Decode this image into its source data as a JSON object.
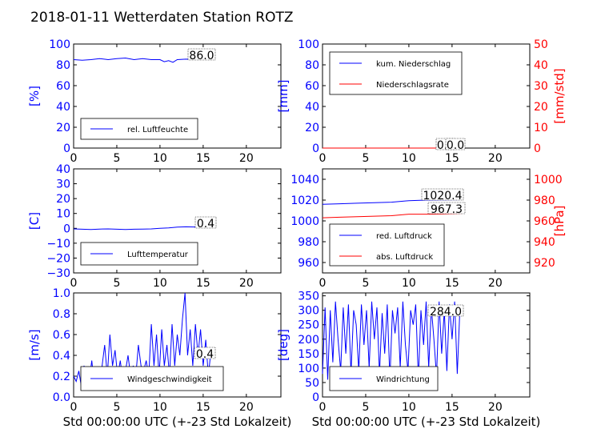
{
  "title": "2018-01-11 Wetterdaten Station ROTZ",
  "colors": {
    "blue": "#0000ff",
    "red": "#ff0000",
    "black": "#000000"
  },
  "chart_data": [
    {
      "id": "humidity",
      "type": "line",
      "xlim": [
        0,
        24
      ],
      "xticks": [
        0,
        5,
        10,
        15,
        20
      ],
      "ylim": [
        0,
        100
      ],
      "yticks": [
        0,
        20,
        40,
        60,
        80,
        100
      ],
      "ylabel": "[%]",
      "ylabel_color": "#0000ff",
      "annotations": [
        "86.0"
      ],
      "legend": [
        "rel. Luftfeuchte"
      ],
      "series": [
        {
          "name": "rel. Luftfeuchte",
          "color": "#0000ff",
          "x": [
            0,
            1,
            2,
            3,
            4,
            5,
            6,
            7,
            8,
            9,
            10,
            10.5,
            11,
            11.5,
            12,
            13,
            14,
            15,
            16.3
          ],
          "y": [
            85,
            84.5,
            85,
            86,
            85,
            86,
            86.5,
            85,
            86,
            85,
            85,
            83,
            84,
            82.5,
            85,
            85.5,
            85,
            86,
            86
          ]
        }
      ]
    },
    {
      "id": "precipitation",
      "type": "line",
      "xlim": [
        0,
        24
      ],
      "xticks": [
        0,
        5,
        10,
        15,
        20
      ],
      "ylim": [
        0,
        100
      ],
      "yticks": [
        0,
        20,
        40,
        60,
        80,
        100
      ],
      "ylabel": "[mm]",
      "ylabel_color": "#0000ff",
      "y2lim": [
        0,
        50
      ],
      "y2ticks": [
        0,
        10,
        20,
        30,
        40,
        50
      ],
      "y2label": "[mm/std]",
      "y2label_color": "#ff0000",
      "annotations": [
        "0.0",
        "0.0"
      ],
      "legend": [
        "kum. Niederschlag",
        "Niederschlagsrate"
      ],
      "series": [
        {
          "name": "kum. Niederschlag",
          "color": "#0000ff",
          "x": [
            0,
            16.3
          ],
          "y": [
            0,
            0
          ]
        },
        {
          "name": "Niederschlagsrate",
          "color": "#ff0000",
          "axis": "right",
          "x": [
            0,
            16.3
          ],
          "y": [
            0,
            0
          ]
        }
      ]
    },
    {
      "id": "temperature",
      "type": "line",
      "xlim": [
        0,
        24
      ],
      "xticks": [
        0,
        5,
        10,
        15,
        20
      ],
      "ylim": [
        -30,
        40
      ],
      "yticks": [
        -30,
        -20,
        -10,
        0,
        10,
        20,
        30,
        40
      ],
      "ylabel": "[C]",
      "ylabel_color": "#0000ff",
      "annotations": [
        "0.4"
      ],
      "legend": [
        "Lufttemperatur"
      ],
      "series": [
        {
          "name": "Lufttemperatur",
          "color": "#0000ff",
          "x": [
            0,
            1,
            2,
            3,
            4,
            5,
            6,
            7,
            8,
            9,
            10,
            11,
            12,
            13,
            14,
            15,
            16.3
          ],
          "y": [
            -0.4,
            -0.6,
            -0.8,
            -0.5,
            -0.4,
            -0.6,
            -0.8,
            -0.6,
            -0.5,
            -0.4,
            0,
            0.3,
            0.8,
            1.0,
            0.9,
            0.6,
            0.4
          ]
        }
      ]
    },
    {
      "id": "pressure",
      "type": "line",
      "xlim": [
        0,
        24
      ],
      "xticks": [
        0,
        5,
        10,
        15,
        20
      ],
      "ylim": [
        950,
        1050
      ],
      "yticks": [
        960,
        980,
        1000,
        1020,
        1040
      ],
      "y2lim": [
        910,
        1010
      ],
      "y2ticks": [
        920,
        940,
        960,
        980,
        1000
      ],
      "y2label": "[hPa]",
      "y2label_color": "#ff0000",
      "annotations": [
        "1020.4",
        "967.3"
      ],
      "legend": [
        "red. Luftdruck",
        "abs. Luftdruck"
      ],
      "series": [
        {
          "name": "red. Luftdruck",
          "color": "#0000ff",
          "x": [
            0,
            2,
            4,
            6,
            8,
            10,
            12,
            14,
            16.3
          ],
          "y": [
            1016,
            1016.5,
            1017,
            1017.5,
            1018,
            1019.5,
            1020,
            1020.2,
            1020.4
          ]
        },
        {
          "name": "abs. Luftdruck",
          "color": "#ff0000",
          "axis": "right",
          "x": [
            0,
            2,
            4,
            6,
            8,
            10,
            12,
            14,
            16.3
          ],
          "y": [
            963,
            963.5,
            964,
            964.5,
            965,
            966.5,
            966.5,
            966.8,
            967.3
          ]
        }
      ]
    },
    {
      "id": "windspeed",
      "type": "line",
      "xlim": [
        0,
        24
      ],
      "xticks": [
        0,
        5,
        10,
        15,
        20
      ],
      "ylim": [
        0,
        1.0
      ],
      "yticks": [
        0.0,
        0.2,
        0.4,
        0.6,
        0.8,
        1.0
      ],
      "ylabel": "[m/s]",
      "ylabel_color": "#0000ff",
      "xlabel": "Std 00:00:00 UTC (+-23 Std Lokalzeit)",
      "annotations": [
        "0.4"
      ],
      "legend": [
        "Windgeschwindigkeit"
      ],
      "series": [
        {
          "name": "Windgeschwindigkeit",
          "color": "#0000ff",
          "x": [
            0,
            0.3,
            0.6,
            0.9,
            1.2,
            1.5,
            1.8,
            2.1,
            2.4,
            2.7,
            3.0,
            3.3,
            3.6,
            3.9,
            4.2,
            4.5,
            4.8,
            5.1,
            5.4,
            5.7,
            6.0,
            6.3,
            6.6,
            6.9,
            7.2,
            7.5,
            7.8,
            8.1,
            8.4,
            8.7,
            9.0,
            9.3,
            9.6,
            9.9,
            10.2,
            10.5,
            10.8,
            11.1,
            11.4,
            11.7,
            12.0,
            12.3,
            12.6,
            12.9,
            13.2,
            13.5,
            13.8,
            14.1,
            14.4,
            14.7,
            15.0,
            15.3,
            15.6,
            15.9,
            16.2
          ],
          "y": [
            0.2,
            0.15,
            0.25,
            0.1,
            0.3,
            0.2,
            0.15,
            0.35,
            0.1,
            0.2,
            0.15,
            0.3,
            0.5,
            0.2,
            0.6,
            0.3,
            0.45,
            0.2,
            0.35,
            0.15,
            0.25,
            0.4,
            0.2,
            0.3,
            0.2,
            0.5,
            0.3,
            0.25,
            0.35,
            0.2,
            0.7,
            0.3,
            0.6,
            0.2,
            0.65,
            0.3,
            0.5,
            0.2,
            0.7,
            0.3,
            0.6,
            0.4,
            0.75,
            1.0,
            0.4,
            0.65,
            0.3,
            0.7,
            0.4,
            0.65,
            0.3,
            0.55,
            0.2,
            0.45,
            0.4
          ]
        }
      ]
    },
    {
      "id": "winddirection",
      "type": "line",
      "xlim": [
        0,
        24
      ],
      "xticks": [
        0,
        5,
        10,
        15,
        20
      ],
      "ylim": [
        0,
        360
      ],
      "yticks": [
        0,
        50,
        100,
        150,
        200,
        250,
        300,
        350
      ],
      "ylabel": "[deg]",
      "ylabel_color": "#0000ff",
      "xlabel": "Std 00:00:00 UTC (+-23 Std Lokalzeit)",
      "annotations": [
        "284.0"
      ],
      "legend": [
        "Windrichtung"
      ],
      "series": [
        {
          "name": "Windrichtung",
          "color": "#0000ff",
          "x": [
            0,
            0.3,
            0.6,
            0.9,
            1.2,
            1.5,
            1.8,
            2.1,
            2.4,
            2.7,
            3.0,
            3.3,
            3.6,
            3.9,
            4.2,
            4.5,
            4.8,
            5.1,
            5.4,
            5.7,
            6.0,
            6.3,
            6.6,
            6.9,
            7.2,
            7.5,
            7.8,
            8.1,
            8.4,
            8.7,
            9.0,
            9.3,
            9.6,
            9.9,
            10.2,
            10.5,
            10.8,
            11.1,
            11.4,
            11.7,
            12.0,
            12.3,
            12.6,
            12.9,
            13.2,
            13.5,
            13.8,
            14.1,
            14.4,
            14.7,
            15.0,
            15.3,
            15.6,
            15.9,
            16.2
          ],
          "y": [
            80,
            310,
            60,
            300,
            120,
            330,
            200,
            90,
            310,
            150,
            320,
            80,
            300,
            250,
            90,
            320,
            180,
            300,
            100,
            330,
            200,
            310,
            80,
            290,
            150,
            320,
            60,
            300,
            220,
            310,
            100,
            330,
            180,
            90,
            300,
            250,
            320,
            60,
            300,
            180,
            330,
            100,
            310,
            200,
            70,
            330,
            150,
            300,
            90,
            320,
            200,
            330,
            80,
            300,
            284
          ]
        }
      ]
    }
  ]
}
